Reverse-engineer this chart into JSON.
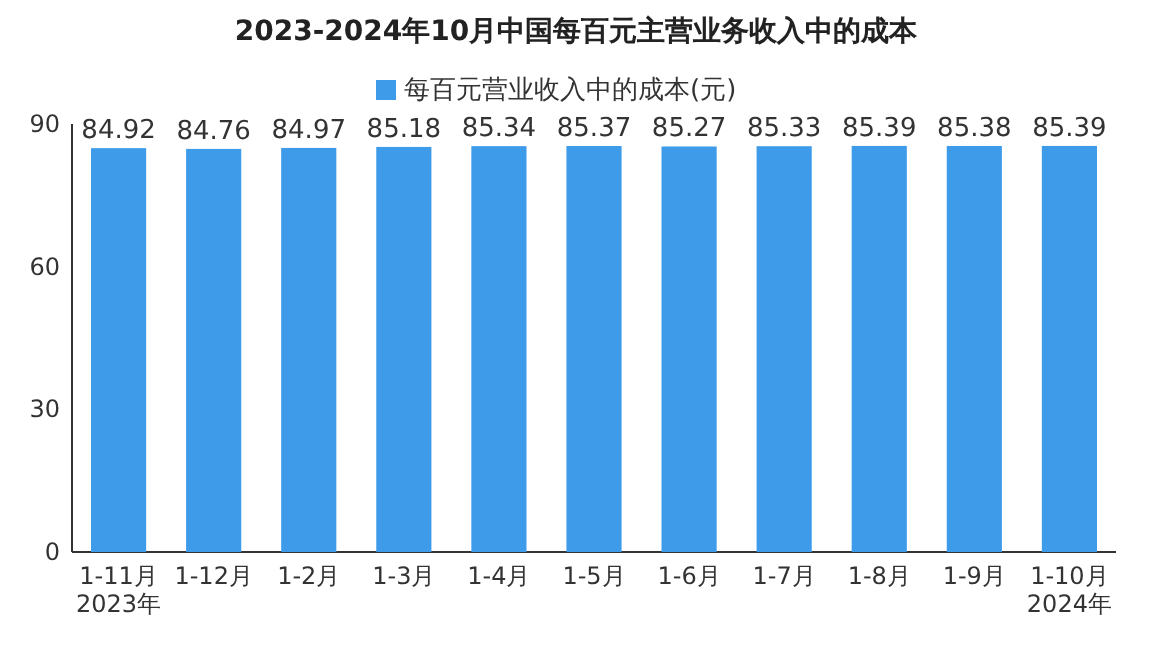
{
  "chart_data": {
    "type": "bar",
    "title": "2023-2024年10月中国每百元主营业务收入中的成本",
    "categories": [
      "1-11月\n2023年",
      "1-12月",
      "1-2月",
      "1-3月",
      "1-4月",
      "1-5月",
      "1-6月",
      "1-7月",
      "1-8月",
      "1-9月",
      "1-10月\n2024年"
    ],
    "series": [
      {
        "name": "每百元营业收入中的成本(元)",
        "color": "#3d9be9",
        "values": [
          84.92,
          84.76,
          84.97,
          85.18,
          85.34,
          85.37,
          85.27,
          85.33,
          85.39,
          85.38,
          85.39
        ]
      }
    ],
    "ylim": [
      0,
      90
    ],
    "yticks": [
      0,
      30,
      60,
      90
    ],
    "data_labels": true,
    "legend": "top",
    "grid": false
  }
}
